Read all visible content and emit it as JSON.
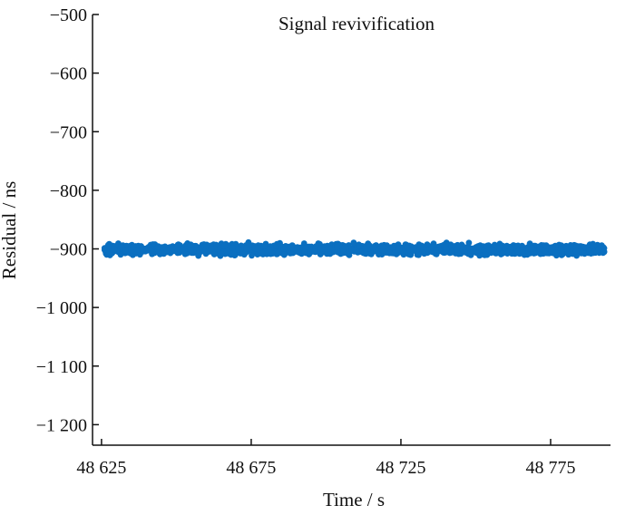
{
  "chart_data": {
    "type": "scatter",
    "title": "Signal revivification",
    "xlabel": "Time / s",
    "ylabel": "Residual / ns",
    "xlim": [
      48622,
      48795
    ],
    "ylim": [
      -1235,
      -500
    ],
    "x_ticks": [
      48625,
      48675,
      48725,
      48775
    ],
    "x_tick_labels": [
      "48 625",
      "48 675",
      "48 725",
      "48 775"
    ],
    "y_ticks": [
      -500,
      -600,
      -700,
      -800,
      -900,
      -1000,
      -1100,
      -1200
    ],
    "y_tick_labels": [
      "−500",
      "−600",
      "−700",
      "−800",
      "−900",
      "−1 000",
      "−1 100",
      "−1 200"
    ],
    "grid": false,
    "series": [
      {
        "color": "#0a6fc0",
        "x_start": 48626,
        "x_end": 48793,
        "mean": -901,
        "min": -915,
        "max": -877,
        "point_count": 1800
      }
    ]
  }
}
